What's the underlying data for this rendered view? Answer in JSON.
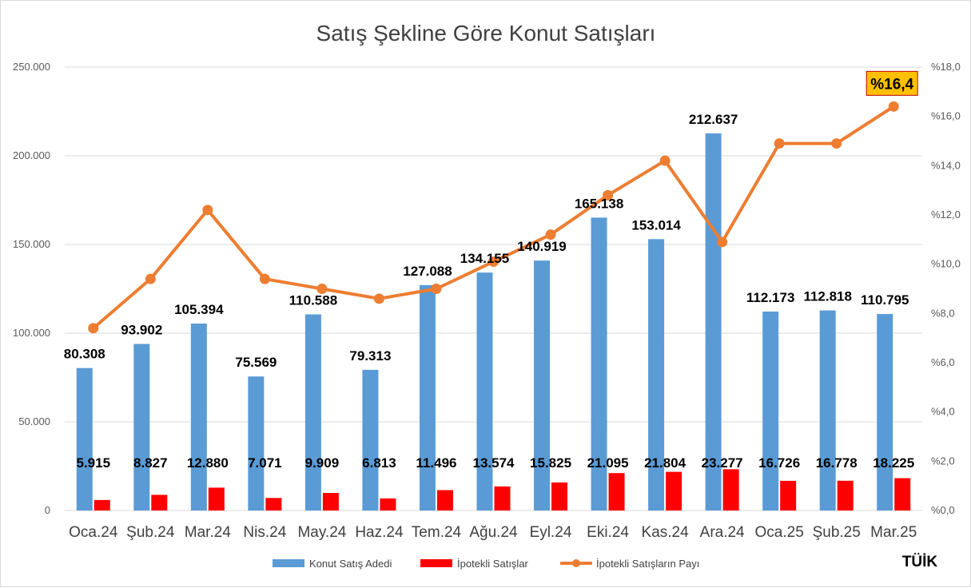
{
  "chart_data": {
    "type": "bar",
    "title": "Satış Şekline Göre Konut Satışları",
    "categories": [
      "Oca.24",
      "Şub.24",
      "Mar.24",
      "Nis.24",
      "May.24",
      "Haz.24",
      "Tem.24",
      "Ağu.24",
      "Eyl.24",
      "Eki.24",
      "Kas.24",
      "Ara.24",
      "Oca.25",
      "Şub.25",
      "Mar.25"
    ],
    "series": [
      {
        "name": "Konut Satış Adedi",
        "type": "bar",
        "axis": "left",
        "color": "#5b9bd5",
        "values": [
          80308,
          93902,
          105394,
          75569,
          110588,
          79313,
          127088,
          134155,
          140919,
          165138,
          153014,
          212637,
          112173,
          112818,
          110795
        ],
        "labels": [
          "80.308",
          "93.902",
          "105.394",
          "75.569",
          "110.588",
          "79.313",
          "127.088",
          "134.155",
          "140.919",
          "165.138",
          "153.014",
          "212.637",
          "112.173",
          "112.818",
          "110.795"
        ]
      },
      {
        "name": "İpotekli Satışlar",
        "type": "bar",
        "axis": "left",
        "color": "#ff0000",
        "values": [
          5915,
          8827,
          12880,
          7071,
          9909,
          6813,
          11496,
          13574,
          15825,
          21095,
          21804,
          23277,
          16726,
          16778,
          18225
        ],
        "labels": [
          "5.915",
          "8.827",
          "12.880",
          "7.071",
          "9.909",
          "6.813",
          "11.496",
          "13.574",
          "15.825",
          "21.095",
          "21.804",
          "23.277",
          "16.726",
          "16.778",
          "18.225"
        ]
      },
      {
        "name": "İpotekli Satışların Payı",
        "type": "line",
        "axis": "right",
        "color": "#ed7d31",
        "values": [
          7.4,
          9.4,
          12.2,
          9.4,
          9.0,
          8.6,
          9.0,
          10.1,
          11.2,
          12.8,
          14.2,
          10.9,
          14.9,
          14.9,
          16.4
        ]
      }
    ],
    "y_left": {
      "ylim": [
        0,
        250000
      ],
      "ticks": [
        0,
        50000,
        100000,
        150000,
        200000,
        250000
      ],
      "tick_labels": [
        "0",
        "50.000",
        "100.000",
        "150.000",
        "200.000",
        "250.000"
      ]
    },
    "y_right": {
      "ylim": [
        0,
        18
      ],
      "ticks": [
        0,
        2,
        4,
        6,
        8,
        10,
        12,
        14,
        16,
        18
      ],
      "tick_labels": [
        "%0,0",
        "%2,0",
        "%4,0",
        "%6,0",
        "%8,0",
        "%10,0",
        "%12,0",
        "%14,0",
        "%16,0",
        "%18,0"
      ]
    },
    "annotation": {
      "text": "%16,4",
      "bg": "#ffc000",
      "border": "#c00000"
    },
    "legend_position": "bottom",
    "grid": true,
    "source": "TÜİK"
  }
}
